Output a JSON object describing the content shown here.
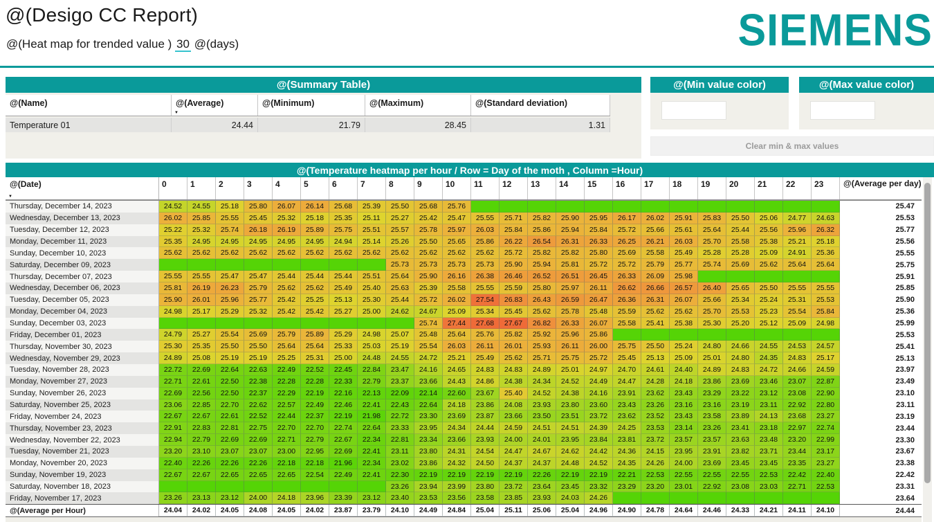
{
  "report": {
    "title": "@(Desigo CC Report)",
    "subtitle_prefix": "@(Heat map for trended value )",
    "subtitle_days_value": "30",
    "subtitle_suffix": "@(days)",
    "brand": "SIEMENS",
    "accent_color": "#0a9a9a"
  },
  "summary_table": {
    "title": "@(Summary Table)",
    "columns": [
      "@(Name)",
      "@(Average)",
      "@(Minimum)",
      "@(Maximum)",
      "@(Standard deviation)"
    ],
    "sorted_column": "@(Average)",
    "rows": [
      {
        "name": "Temperature 01",
        "average": "24.44",
        "minimum": "21.79",
        "maximum": "28.45",
        "std_dev": "1.31"
      }
    ]
  },
  "color_controls": {
    "min_panel_title": "@(Min value color)",
    "max_panel_title": "@(Max value color)",
    "min_input_value": "",
    "max_input_value": "",
    "clear_button_label": "Clear min & max values"
  },
  "chart_data": {
    "type": "heatmap",
    "title": "@(Temperature heatmap per hour / Row = Day of the moth , Column =Hour)",
    "row_header_label": "@(Date)",
    "col_headers": [
      "0",
      "1",
      "2",
      "3",
      "4",
      "5",
      "6",
      "7",
      "8",
      "9",
      "10",
      "11",
      "12",
      "13",
      "14",
      "15",
      "16",
      "17",
      "18",
      "19",
      "20",
      "21",
      "22",
      "23"
    ],
    "avg_col_header": "@(Average per day)",
    "footer_row_label": "@(Average per Hour)",
    "value_range": [
      21.79,
      28.45
    ],
    "color_stops": [
      {
        "pos": 0.0,
        "color": "#55d406"
      },
      {
        "pos": 0.33,
        "color": "#acd526"
      },
      {
        "pos": 0.5,
        "color": "#ded42e"
      },
      {
        "pos": 0.63,
        "color": "#ecb13b"
      },
      {
        "pos": 0.78,
        "color": "#f08a3c"
      },
      {
        "pos": 1.0,
        "color": "#ee4834"
      }
    ],
    "rows": [
      {
        "date": "Thursday, December 14, 2023",
        "values": [
          24.52,
          24.55,
          25.18,
          25.8,
          26.07,
          26.14,
          25.68,
          25.39,
          25.5,
          25.68,
          25.76,
          null,
          null,
          null,
          null,
          null,
          null,
          null,
          null,
          null,
          null,
          null,
          null,
          null
        ],
        "avg": "25.47"
      },
      {
        "date": "Wednesday, December 13, 2023",
        "values": [
          26.02,
          25.85,
          25.55,
          25.45,
          25.32,
          25.18,
          25.35,
          25.11,
          25.27,
          25.42,
          25.47,
          25.55,
          25.71,
          25.82,
          25.9,
          25.95,
          26.17,
          26.02,
          25.91,
          25.83,
          25.5,
          25.06,
          24.77,
          24.63
        ],
        "avg": "25.53"
      },
      {
        "date": "Tuesday, December 12, 2023",
        "values": [
          25.22,
          25.32,
          25.74,
          26.18,
          26.19,
          25.89,
          25.75,
          25.51,
          25.57,
          25.78,
          25.97,
          26.03,
          25.84,
          25.86,
          25.94,
          25.84,
          25.72,
          25.66,
          25.61,
          25.64,
          25.44,
          25.56,
          25.96,
          26.32
        ],
        "avg": "25.77"
      },
      {
        "date": "Monday, December 11, 2023",
        "values": [
          25.35,
          24.95,
          24.95,
          24.95,
          24.95,
          24.95,
          24.94,
          25.14,
          25.26,
          25.5,
          25.65,
          25.86,
          26.22,
          26.54,
          26.31,
          26.33,
          26.25,
          26.21,
          26.03,
          25.7,
          25.58,
          25.38,
          25.21,
          25.18
        ],
        "avg": "25.56"
      },
      {
        "date": "Sunday, December 10, 2023",
        "values": [
          25.62,
          25.62,
          25.62,
          25.62,
          25.62,
          25.62,
          25.62,
          25.62,
          25.62,
          25.62,
          25.62,
          25.62,
          25.72,
          25.82,
          25.82,
          25.8,
          25.69,
          25.58,
          25.49,
          25.28,
          25.28,
          25.09,
          24.91,
          25.36
        ],
        "avg": "25.55"
      },
      {
        "date": "Saturday, December 09, 2023",
        "values": [
          null,
          null,
          null,
          null,
          null,
          null,
          null,
          null,
          25.73,
          25.73,
          25.73,
          25.73,
          25.9,
          25.94,
          25.81,
          25.72,
          25.72,
          25.79,
          25.77,
          25.74,
          25.69,
          25.62,
          25.64,
          25.64
        ],
        "avg": "25.75"
      },
      {
        "date": "Thursday, December 07, 2023",
        "values": [
          25.55,
          25.55,
          25.47,
          25.47,
          25.44,
          25.44,
          25.44,
          25.51,
          25.64,
          25.9,
          26.16,
          26.38,
          26.46,
          26.52,
          26.51,
          26.45,
          26.33,
          26.09,
          25.98,
          null,
          null,
          null,
          null,
          null
        ],
        "avg": "25.91"
      },
      {
        "date": "Wednesday, December 06, 2023",
        "values": [
          25.81,
          26.19,
          26.23,
          25.79,
          25.62,
          25.62,
          25.49,
          25.4,
          25.63,
          25.39,
          25.58,
          25.55,
          25.59,
          25.8,
          25.97,
          26.11,
          26.62,
          26.66,
          26.57,
          26.4,
          25.65,
          25.5,
          25.55,
          25.55
        ],
        "avg": "25.85"
      },
      {
        "date": "Tuesday, December 05, 2023",
        "values": [
          25.9,
          26.01,
          25.96,
          25.77,
          25.42,
          25.25,
          25.13,
          25.3,
          25.44,
          25.72,
          26.02,
          27.54,
          26.83,
          26.43,
          26.59,
          26.47,
          26.36,
          26.31,
          26.07,
          25.66,
          25.34,
          25.24,
          25.31,
          25.53
        ],
        "avg": "25.90"
      },
      {
        "date": "Monday, December 04, 2023",
        "values": [
          24.98,
          25.17,
          25.29,
          25.32,
          25.42,
          25.42,
          25.27,
          25.0,
          24.62,
          24.67,
          25.09,
          25.34,
          25.45,
          25.62,
          25.78,
          25.48,
          25.59,
          25.62,
          25.62,
          25.7,
          25.53,
          25.23,
          25.54,
          25.84
        ],
        "avg": "25.36"
      },
      {
        "date": "Sunday, December 03, 2023",
        "values": [
          null,
          null,
          null,
          null,
          null,
          null,
          null,
          null,
          null,
          25.74,
          27.44,
          27.68,
          27.67,
          26.82,
          26.33,
          26.07,
          25.58,
          25.41,
          25.38,
          25.3,
          25.2,
          25.12,
          25.09,
          24.98
        ],
        "avg": "25.99"
      },
      {
        "date": "Friday, December 01, 2023",
        "values": [
          24.79,
          25.27,
          25.54,
          25.69,
          25.79,
          25.89,
          25.29,
          24.98,
          25.07,
          25.48,
          25.64,
          25.76,
          25.82,
          25.92,
          25.96,
          25.86,
          null,
          null,
          null,
          null,
          null,
          null,
          null,
          null
        ],
        "avg": "25.53"
      },
      {
        "date": "Thursday, November 30, 2023",
        "values": [
          25.3,
          25.35,
          25.5,
          25.5,
          25.64,
          25.64,
          25.33,
          25.03,
          25.19,
          25.54,
          26.03,
          26.11,
          26.01,
          25.93,
          26.11,
          26.0,
          25.75,
          25.5,
          25.24,
          24.8,
          24.66,
          24.55,
          24.53,
          24.57
        ],
        "avg": "25.41"
      },
      {
        "date": "Wednesday, November 29, 2023",
        "values": [
          24.89,
          25.08,
          25.19,
          25.19,
          25.25,
          25.31,
          25.0,
          24.48,
          24.55,
          24.72,
          25.21,
          25.49,
          25.62,
          25.71,
          25.75,
          25.72,
          25.45,
          25.13,
          25.09,
          25.01,
          24.8,
          24.35,
          24.83,
          25.17
        ],
        "avg": "25.13"
      },
      {
        "date": "Tuesday, November 28, 2023",
        "values": [
          22.72,
          22.69,
          22.64,
          22.63,
          22.49,
          22.52,
          22.45,
          22.84,
          23.47,
          24.16,
          24.65,
          24.83,
          24.83,
          24.89,
          25.01,
          24.97,
          24.7,
          24.61,
          24.4,
          24.89,
          24.83,
          24.72,
          24.66,
          24.59
        ],
        "avg": "23.97"
      },
      {
        "date": "Monday, November 27, 2023",
        "values": [
          22.71,
          22.61,
          22.5,
          22.38,
          22.28,
          22.28,
          22.33,
          22.79,
          23.37,
          23.66,
          24.43,
          24.86,
          24.38,
          24.34,
          24.52,
          24.49,
          24.47,
          24.28,
          24.18,
          23.86,
          23.69,
          23.46,
          23.07,
          22.87
        ],
        "avg": "23.49"
      },
      {
        "date": "Sunday, November 26, 2023",
        "values": [
          22.69,
          22.56,
          22.5,
          22.37,
          22.29,
          22.19,
          22.16,
          22.13,
          22.09,
          22.14,
          22.6,
          23.67,
          25.4,
          24.52,
          24.38,
          24.16,
          23.91,
          23.62,
          23.43,
          23.29,
          23.22,
          23.12,
          23.08,
          22.9
        ],
        "avg": "23.10"
      },
      {
        "date": "Saturday, November 25, 2023",
        "values": [
          23.06,
          22.85,
          22.7,
          22.62,
          22.57,
          22.49,
          22.46,
          22.41,
          22.43,
          22.64,
          24.18,
          23.86,
          24.08,
          23.93,
          23.8,
          23.6,
          23.43,
          23.26,
          23.16,
          23.16,
          23.19,
          23.11,
          22.92,
          22.8
        ],
        "avg": "23.11"
      },
      {
        "date": "Friday, November 24, 2023",
        "values": [
          22.67,
          22.67,
          22.61,
          22.52,
          22.44,
          22.37,
          22.19,
          21.98,
          22.72,
          23.3,
          23.69,
          23.87,
          23.66,
          23.5,
          23.51,
          23.72,
          23.62,
          23.52,
          23.43,
          23.58,
          23.89,
          24.13,
          23.68,
          23.27
        ],
        "avg": "23.19"
      },
      {
        "date": "Thursday, November 23, 2023",
        "values": [
          22.91,
          22.83,
          22.81,
          22.75,
          22.7,
          22.7,
          22.74,
          22.64,
          23.33,
          23.95,
          24.34,
          24.44,
          24.59,
          24.51,
          24.51,
          24.39,
          24.25,
          23.53,
          23.14,
          23.26,
          23.41,
          23.18,
          22.97,
          22.74
        ],
        "avg": "23.44"
      },
      {
        "date": "Wednesday, November 22, 2023",
        "values": [
          22.94,
          22.79,
          22.69,
          22.69,
          22.71,
          22.79,
          22.67,
          22.34,
          22.81,
          23.34,
          23.66,
          23.93,
          24.0,
          24.01,
          23.95,
          23.84,
          23.81,
          23.72,
          23.57,
          23.57,
          23.63,
          23.48,
          23.2,
          22.99
        ],
        "avg": "23.30"
      },
      {
        "date": "Tuesday, November 21, 2023",
        "values": [
          23.2,
          23.1,
          23.07,
          23.07,
          23.0,
          22.95,
          22.69,
          22.41,
          23.11,
          23.8,
          24.31,
          24.54,
          24.47,
          24.67,
          24.62,
          24.42,
          24.36,
          24.15,
          23.95,
          23.91,
          23.82,
          23.71,
          23.44,
          23.17
        ],
        "avg": "23.67"
      },
      {
        "date": "Monday, November 20, 2023",
        "values": [
          22.4,
          22.26,
          22.26,
          22.26,
          22.18,
          22.18,
          21.96,
          22.34,
          23.02,
          23.86,
          24.32,
          24.5,
          24.37,
          24.37,
          24.48,
          24.52,
          24.35,
          24.26,
          24.0,
          23.69,
          23.45,
          23.45,
          23.35,
          23.27
        ],
        "avg": "23.38"
      },
      {
        "date": "Sunday, November 19, 2023",
        "values": [
          22.67,
          22.67,
          22.65,
          22.65,
          22.65,
          22.54,
          22.49,
          22.41,
          22.3,
          22.19,
          22.19,
          22.19,
          22.19,
          22.26,
          22.19,
          22.19,
          22.21,
          22.53,
          22.55,
          22.55,
          22.55,
          22.53,
          22.42,
          22.4
        ],
        "avg": "22.42"
      },
      {
        "date": "Saturday, November 18, 2023",
        "values": [
          null,
          null,
          null,
          null,
          null,
          null,
          null,
          null,
          23.26,
          23.94,
          23.99,
          23.8,
          23.72,
          23.64,
          23.45,
          23.32,
          23.29,
          23.2,
          23.01,
          22.92,
          23.08,
          23.03,
          22.71,
          22.53
        ],
        "avg": "23.31"
      },
      {
        "date": "Friday, November 17, 2023",
        "values": [
          23.26,
          23.13,
          23.12,
          24.0,
          24.18,
          23.96,
          23.39,
          23.12,
          23.4,
          23.53,
          23.56,
          23.58,
          23.85,
          23.93,
          24.03,
          24.26,
          null,
          null,
          null,
          null,
          null,
          null,
          null,
          null
        ],
        "avg": "23.64"
      }
    ],
    "footer": {
      "values": [
        24.04,
        24.02,
        24.05,
        24.08,
        24.05,
        24.02,
        23.87,
        23.79,
        24.1,
        24.49,
        24.84,
        25.04,
        25.11,
        25.06,
        25.04,
        24.96,
        24.9,
        24.78,
        24.64,
        24.46,
        24.33,
        24.21,
        24.11,
        24.1
      ],
      "avg": "24.44"
    }
  }
}
